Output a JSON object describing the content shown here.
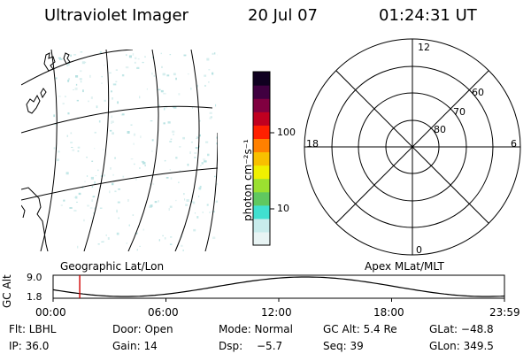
{
  "header": {
    "instrument": "Ultraviolet Imager",
    "date": "20 Jul 07",
    "time": "01:24:31 UT"
  },
  "colorbar": {
    "unit_label": "photon cm⁻²s⁻¹",
    "tick_100": "100",
    "tick_10": "10",
    "colors": [
      "#e8f4f4",
      "#c8ecec",
      "#40e0d0",
      "#60c860",
      "#9be030",
      "#f0f000",
      "#f8c000",
      "#ff8000",
      "#ff2000",
      "#c00020",
      "#800040",
      "#400040",
      "#100020"
    ]
  },
  "polar": {
    "label_12": "12",
    "label_18": "18",
    "label_6": "6",
    "label_0": "0",
    "label_60": "60",
    "label_70": "70",
    "label_80": "80"
  },
  "projection_labels": {
    "left": "Geographic Lat/Lon",
    "right": "Apex MLat/MLT"
  },
  "altitude_plot": {
    "ylabel": "GC Alt",
    "ymax": "9.0",
    "ymin": "1.8",
    "xticks": [
      "00:00",
      "06:00",
      "12:00",
      "18:00",
      "23:59"
    ],
    "current_time_fraction": 0.059
  },
  "footer": {
    "flt": "Flt: LBHL",
    "door": "Door: Open",
    "mode": "Mode: Normal",
    "gcalt": "GC Alt: 5.4 Re",
    "glat": "GLat: −48.8",
    "ip": "IP: 36.0",
    "gain": "Gain: 14",
    "dsp_label": "Dsp:",
    "dsp_value": "−5.7",
    "seq": "Seq: 39",
    "glon": "GLon: 349.5"
  }
}
